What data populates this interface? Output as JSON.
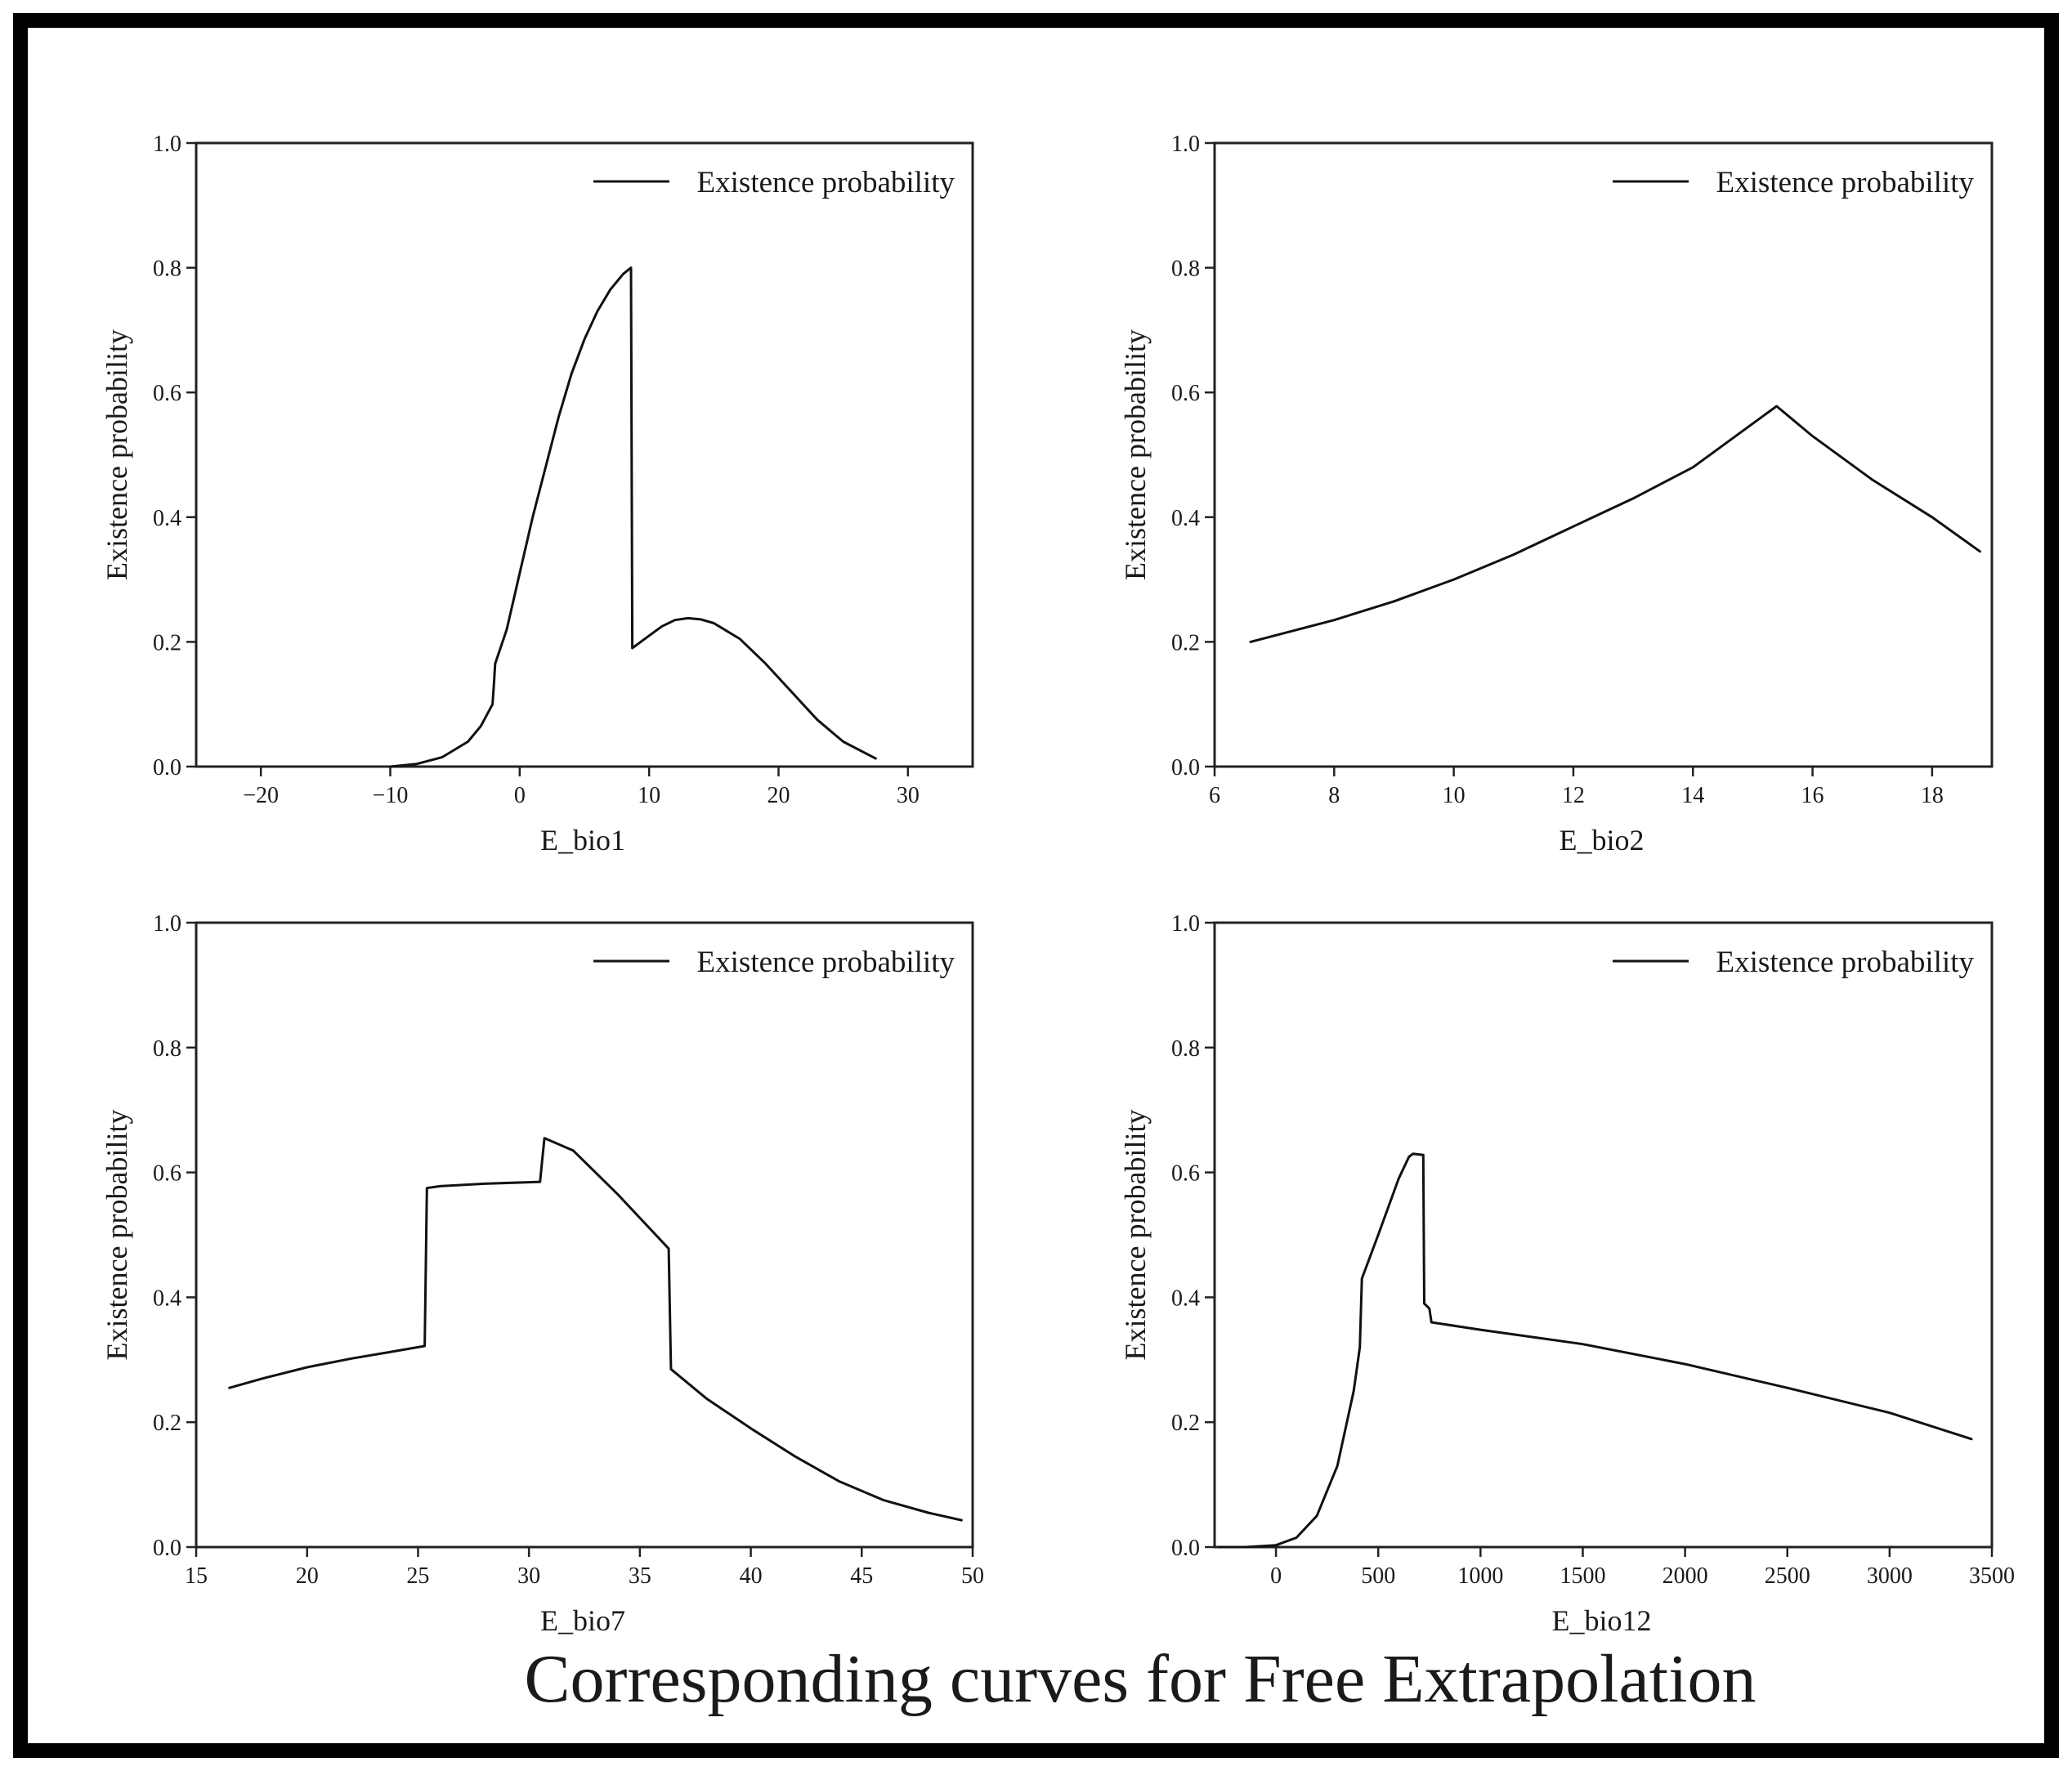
{
  "figure_title": "Corresponding curves for Free Extrapolation",
  "colors": {
    "line": "#111111",
    "axis": "#222222",
    "background": "#ffffff",
    "frame": "#000000"
  },
  "chart_data": [
    {
      "type": "line",
      "xlabel": "E_bio1",
      "ylabel": "Existence probability",
      "legend": "Existence probability",
      "legend_position": "top-right",
      "grid": false,
      "xlim": [
        -25,
        35
      ],
      "ylim": [
        0,
        1
      ],
      "xticks": [
        -20,
        -10,
        0,
        10,
        20,
        30
      ],
      "yticks": [
        0.0,
        0.2,
        0.4,
        0.6,
        0.8,
        1.0
      ],
      "xtick_labels": [
        "−20",
        "−10",
        "0",
        "10",
        "20",
        "30"
      ],
      "ytick_labels": [
        "0.0",
        "0.2",
        "0.4",
        "0.6",
        "0.8",
        "1.0"
      ],
      "series": [
        {
          "name": "Existence probability",
          "points": [
            [
              -10,
              0
            ],
            [
              -8,
              0.004
            ],
            [
              -6,
              0.015
            ],
            [
              -4,
              0.04
            ],
            [
              -3,
              0.065
            ],
            [
              -2.1,
              0.1
            ],
            [
              -2,
              0.13
            ],
            [
              -1.9,
              0.165
            ],
            [
              -1,
              0.22
            ],
            [
              0,
              0.31
            ],
            [
              1,
              0.4
            ],
            [
              2,
              0.48
            ],
            [
              3,
              0.56
            ],
            [
              4,
              0.63
            ],
            [
              5,
              0.685
            ],
            [
              6,
              0.73
            ],
            [
              7,
              0.765
            ],
            [
              8,
              0.79
            ],
            [
              8.6,
              0.8
            ],
            [
              8.7,
              0.19
            ],
            [
              10,
              0.21
            ],
            [
              11,
              0.225
            ],
            [
              12,
              0.235
            ],
            [
              13,
              0.238
            ],
            [
              14,
              0.236
            ],
            [
              15,
              0.23
            ],
            [
              17,
              0.205
            ],
            [
              19,
              0.165
            ],
            [
              21,
              0.12
            ],
            [
              23,
              0.075
            ],
            [
              25,
              0.04
            ],
            [
              27.5,
              0.013
            ]
          ]
        }
      ]
    },
    {
      "type": "line",
      "xlabel": "E_bio2",
      "ylabel": "Existence probability",
      "legend": "Existence probability",
      "legend_position": "top-right",
      "grid": false,
      "xlim": [
        6,
        19
      ],
      "ylim": [
        0,
        1
      ],
      "xticks": [
        6,
        8,
        10,
        12,
        14,
        16,
        18
      ],
      "yticks": [
        0.0,
        0.2,
        0.4,
        0.6,
        0.8,
        1.0
      ],
      "xtick_labels": [
        "6",
        "8",
        "10",
        "12",
        "14",
        "16",
        "18"
      ],
      "ytick_labels": [
        "0.0",
        "0.2",
        "0.4",
        "0.6",
        "0.8",
        "1.0"
      ],
      "series": [
        {
          "name": "Existence probability",
          "points": [
            [
              6.6,
              0.2
            ],
            [
              8,
              0.235
            ],
            [
              9,
              0.265
            ],
            [
              10,
              0.3
            ],
            [
              11,
              0.34
            ],
            [
              12,
              0.385
            ],
            [
              13,
              0.43
            ],
            [
              14,
              0.48
            ],
            [
              15.4,
              0.578
            ],
            [
              16,
              0.53
            ],
            [
              17,
              0.46
            ],
            [
              18,
              0.4
            ],
            [
              18.8,
              0.345
            ]
          ]
        }
      ]
    },
    {
      "type": "line",
      "xlabel": "E_bio7",
      "ylabel": "Existence probability",
      "legend": "Existence probability",
      "legend_position": "top-right",
      "grid": false,
      "xlim": [
        15,
        50
      ],
      "ylim": [
        0,
        1
      ],
      "xticks": [
        15,
        20,
        25,
        30,
        35,
        40,
        45,
        50
      ],
      "yticks": [
        0.0,
        0.2,
        0.4,
        0.6,
        0.8,
        1.0
      ],
      "xtick_labels": [
        "15",
        "20",
        "25",
        "30",
        "35",
        "40",
        "45",
        "50"
      ],
      "ytick_labels": [
        "0.0",
        "0.2",
        "0.4",
        "0.6",
        "0.8",
        "1.0"
      ],
      "series": [
        {
          "name": "Existence probability",
          "points": [
            [
              16.5,
              0.255
            ],
            [
              18,
              0.27
            ],
            [
              20,
              0.288
            ],
            [
              22,
              0.302
            ],
            [
              24,
              0.314
            ],
            [
              25.3,
              0.322
            ],
            [
              25.4,
              0.575
            ],
            [
              26,
              0.578
            ],
            [
              28,
              0.582
            ],
            [
              30.5,
              0.585
            ],
            [
              30.6,
              0.62
            ],
            [
              30.7,
              0.655
            ],
            [
              32,
              0.635
            ],
            [
              34,
              0.565
            ],
            [
              36.3,
              0.478
            ],
            [
              36.4,
              0.285
            ],
            [
              38,
              0.238
            ],
            [
              40,
              0.19
            ],
            [
              42,
              0.145
            ],
            [
              44,
              0.105
            ],
            [
              46,
              0.075
            ],
            [
              48,
              0.055
            ],
            [
              49.5,
              0.043
            ]
          ]
        }
      ]
    },
    {
      "type": "line",
      "xlabel": "E_bio12",
      "ylabel": "Existence probability",
      "legend": "Existence probability",
      "legend_position": "top-right",
      "grid": false,
      "xlim": [
        -300,
        3500
      ],
      "ylim": [
        0,
        1
      ],
      "xticks": [
        0,
        500,
        1000,
        1500,
        2000,
        2500,
        3000,
        3500
      ],
      "yticks": [
        0.0,
        0.2,
        0.4,
        0.6,
        0.8,
        1.0
      ],
      "xtick_labels": [
        "0",
        "500",
        "1000",
        "1500",
        "2000",
        "2500",
        "3000",
        "3500"
      ],
      "ytick_labels": [
        "0.0",
        "0.2",
        "0.4",
        "0.6",
        "0.8",
        "1.0"
      ],
      "series": [
        {
          "name": "Existence probability",
          "points": [
            [
              -280,
              0
            ],
            [
              -150,
              0
            ],
            [
              0,
              0.003
            ],
            [
              100,
              0.015
            ],
            [
              200,
              0.05
            ],
            [
              300,
              0.13
            ],
            [
              380,
              0.25
            ],
            [
              410,
              0.32
            ],
            [
              420,
              0.43
            ],
            [
              500,
              0.5
            ],
            [
              600,
              0.59
            ],
            [
              650,
              0.625
            ],
            [
              670,
              0.63
            ],
            [
              720,
              0.628
            ],
            [
              725,
              0.39
            ],
            [
              750,
              0.382
            ],
            [
              760,
              0.36
            ],
            [
              1000,
              0.348
            ],
            [
              1500,
              0.325
            ],
            [
              2000,
              0.293
            ],
            [
              2500,
              0.255
            ],
            [
              3000,
              0.215
            ],
            [
              3400,
              0.173
            ]
          ]
        }
      ]
    }
  ]
}
